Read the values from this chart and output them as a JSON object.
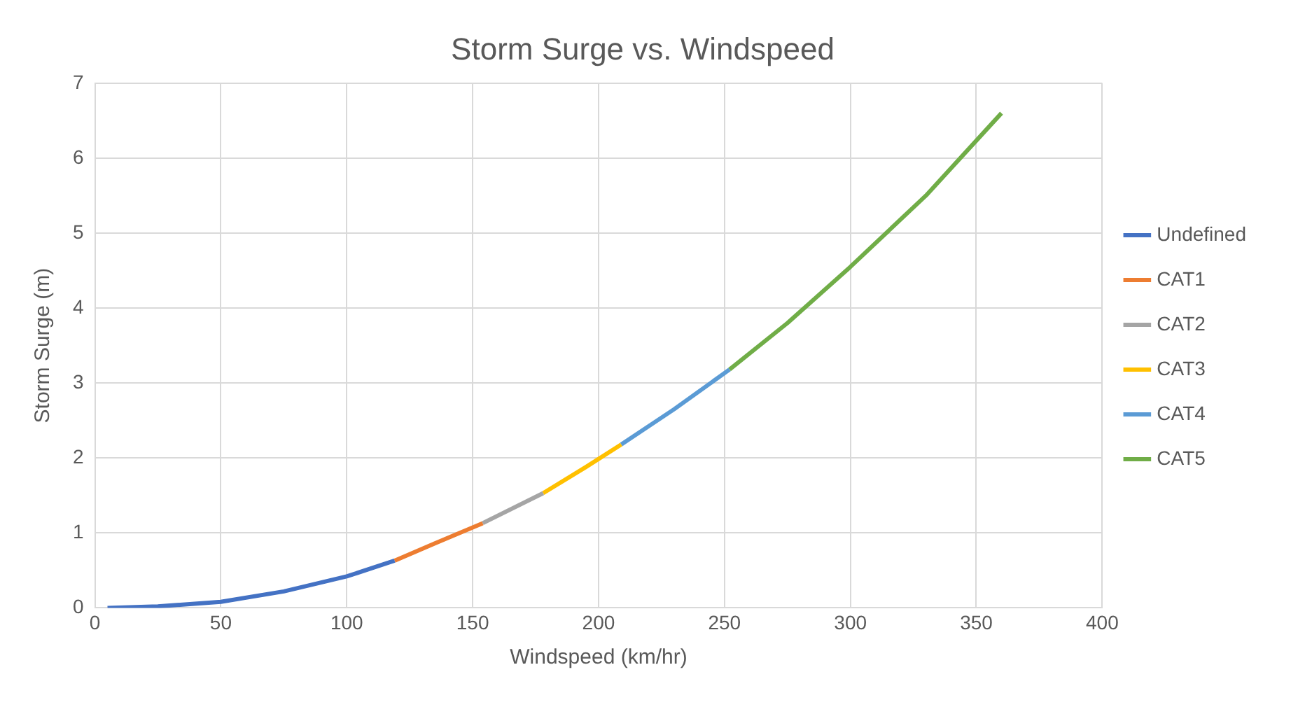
{
  "chart_data": {
    "type": "line",
    "title": "Storm Surge vs. Windspeed",
    "xlabel": "Windspeed (km/hr)",
    "ylabel": "Storm Surge (m)",
    "series": [
      {
        "name": "Undefined",
        "color": "#4472c4",
        "x": [
          5,
          25,
          50,
          75,
          100,
          119
        ],
        "values": [
          0,
          0.02,
          0.08,
          0.22,
          0.42,
          0.63
        ]
      },
      {
        "name": "CAT1",
        "color": "#ed7d31",
        "x": [
          119,
          135,
          154
        ],
        "values": [
          0.63,
          0.86,
          1.13
        ]
      },
      {
        "name": "CAT2",
        "color": "#a5a5a5",
        "x": [
          154,
          178
        ],
        "values": [
          1.13,
          1.53
        ]
      },
      {
        "name": "CAT3",
        "color": "#ffc000",
        "x": [
          178,
          195,
          209
        ],
        "values": [
          1.53,
          1.88,
          2.18
        ]
      },
      {
        "name": "CAT4",
        "color": "#5b9bd5",
        "x": [
          209,
          230,
          252
        ],
        "values": [
          2.18,
          2.65,
          3.18
        ]
      },
      {
        "name": "CAT5",
        "color": "#70ad47",
        "x": [
          252,
          275,
          300,
          330,
          360
        ],
        "values": [
          3.18,
          3.8,
          4.55,
          5.5,
          6.6
        ]
      }
    ],
    "xlim": [
      0,
      400
    ],
    "xticks": [
      0,
      50,
      100,
      150,
      200,
      250,
      300,
      350,
      400
    ],
    "ylim": [
      0,
      7
    ],
    "yticks": [
      0,
      1,
      2,
      3,
      4,
      5,
      6,
      7
    ],
    "grid": true,
    "legend": "right",
    "marker": "none",
    "line_style": "solid"
  }
}
